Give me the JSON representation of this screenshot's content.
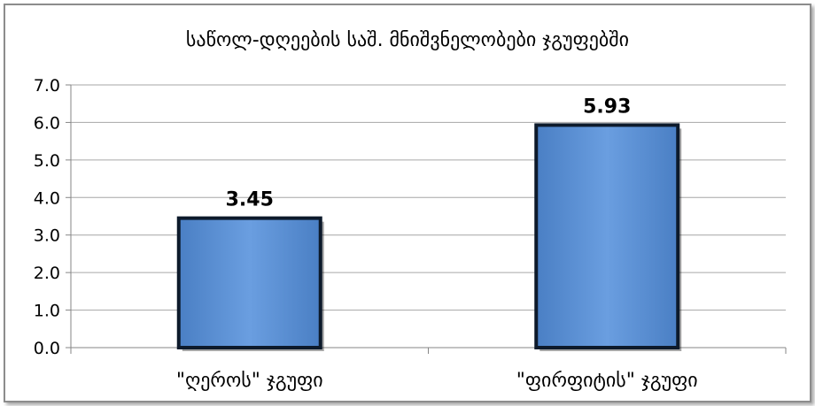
{
  "chart_data": {
    "type": "bar",
    "title": "საწოლ-დღეების საშ. მნიშვნელობები ჯგუფებში",
    "categories": [
      "\"ღეროს\" ჯგუფი",
      "\"ფირფიტის\" ჯგუფი"
    ],
    "values": [
      3.45,
      5.93
    ],
    "value_labels": [
      "3.45",
      "5.93"
    ],
    "ylim": [
      0,
      7
    ],
    "yticks": [
      "0.0",
      "1.0",
      "2.0",
      "3.0",
      "4.0",
      "5.0",
      "6.0",
      "7.0"
    ],
    "xlabel": "",
    "ylabel": "",
    "grid": true,
    "legend": "none",
    "colors": {
      "bar_fill": "#5b8fd4",
      "bar_outline": "#0d1a2b",
      "grid": "#a6a6a6",
      "axis": "#868686"
    }
  }
}
